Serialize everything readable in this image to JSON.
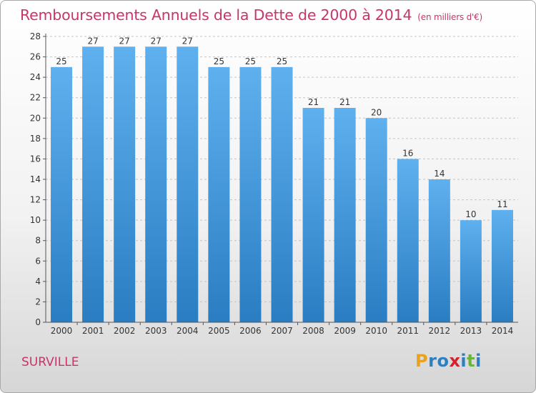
{
  "header": {
    "title": "Remboursements Annuels de la Dette de 2000 à 2014",
    "unit": "(en milliers d'€)"
  },
  "footer": {
    "city": "SURVILLE",
    "logo_letters": [
      "P",
      "r",
      "o",
      "x",
      "i",
      "t",
      "i"
    ],
    "logo_colors": [
      "#e8a21c",
      "#2d7fc0",
      "#2d7fc0",
      "#d6222c",
      "#2d7fc0",
      "#6cb33e",
      "#2d7fc0"
    ]
  },
  "chart_data": {
    "type": "bar",
    "title": "Remboursements Annuels de la Dette de 2000 à 2014",
    "subtitle": "(en milliers d'€)",
    "categories": [
      "2000",
      "2001",
      "2002",
      "2003",
      "2004",
      "2005",
      "2006",
      "2007",
      "2008",
      "2009",
      "2010",
      "2011",
      "2012",
      "2013",
      "2014"
    ],
    "values": [
      25,
      27,
      27,
      27,
      27,
      25,
      25,
      25,
      21,
      21,
      20,
      16,
      14,
      10,
      11
    ],
    "xlabel": "",
    "ylabel": "",
    "ylim": [
      0,
      28
    ],
    "yticks": [
      0,
      2,
      4,
      6,
      8,
      10,
      12,
      14,
      16,
      18,
      20,
      22,
      24,
      26,
      28
    ],
    "grid": true,
    "bar_color_top": "#5eb0ee",
    "bar_color_bottom": "#2a7dc2"
  }
}
